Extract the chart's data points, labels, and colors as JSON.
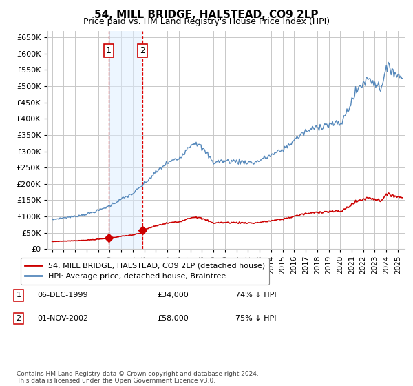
{
  "title": "54, MILL BRIDGE, HALSTEAD, CO9 2LP",
  "subtitle": "Price paid vs. HM Land Registry's House Price Index (HPI)",
  "ylabel_ticks": [
    "£0",
    "£50K",
    "£100K",
    "£150K",
    "£200K",
    "£250K",
    "£300K",
    "£350K",
    "£400K",
    "£450K",
    "£500K",
    "£550K",
    "£600K",
    "£650K"
  ],
  "ytick_values": [
    0,
    50000,
    100000,
    150000,
    200000,
    250000,
    300000,
    350000,
    400000,
    450000,
    500000,
    550000,
    600000,
    650000
  ],
  "ylim": [
    0,
    670000
  ],
  "xlim_start": 1994.6,
  "xlim_end": 2025.6,
  "purchase1": {
    "year": 1999.92,
    "price": 34000,
    "label": "1",
    "date": "06-DEC-1999",
    "hpi_pct": "74% ↓ HPI"
  },
  "purchase2": {
    "year": 2002.83,
    "price": 58000,
    "label": "2",
    "date": "01-NOV-2002",
    "hpi_pct": "75% ↓ HPI"
  },
  "background_color": "#ffffff",
  "plot_bg_color": "#ffffff",
  "grid_color": "#c8c8c8",
  "highlight_fill": "#ddeeff",
  "highlight_alpha": 0.5,
  "hpi_line_color": "#5588bb",
  "price_line_color": "#cc0000",
  "legend_label_price": "54, MILL BRIDGE, HALSTEAD, CO9 2LP (detached house)",
  "legend_label_hpi": "HPI: Average price, detached house, Braintree",
  "footer": "Contains HM Land Registry data © Crown copyright and database right 2024.\nThis data is licensed under the Open Government Licence v3.0.",
  "xtick_years": [
    1995,
    1996,
    1997,
    1998,
    1999,
    2000,
    2001,
    2002,
    2003,
    2004,
    2005,
    2006,
    2007,
    2008,
    2009,
    2010,
    2011,
    2012,
    2013,
    2014,
    2015,
    2016,
    2017,
    2018,
    2019,
    2020,
    2021,
    2022,
    2023,
    2024,
    2025
  ]
}
